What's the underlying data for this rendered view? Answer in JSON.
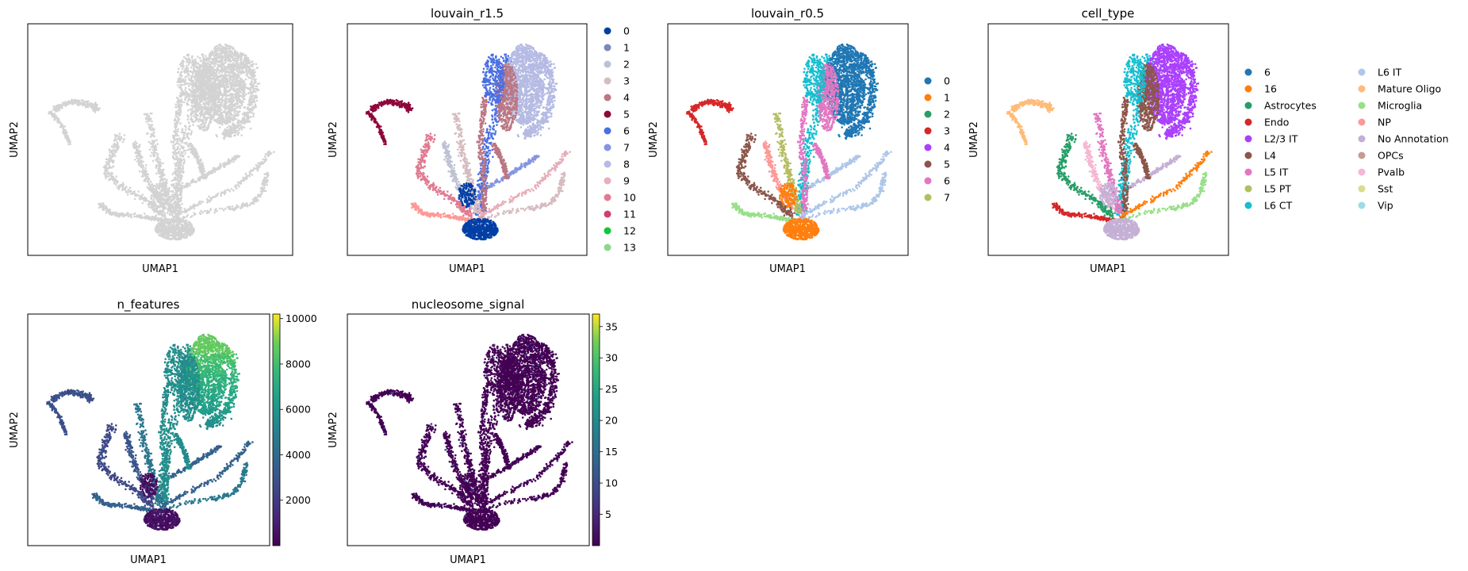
{
  "chart_data": [
    {
      "type": "scatter",
      "title": "",
      "xlabel": "UMAP1",
      "ylabel": "UMAP2",
      "point_color": "#d3d3d3",
      "legend": []
    },
    {
      "type": "scatter",
      "title": "louvain_r1.5",
      "xlabel": "UMAP1",
      "ylabel": "UMAP2",
      "legend_placement": "right",
      "legend": [
        {
          "label": "0",
          "color": "#023fa5"
        },
        {
          "label": "1",
          "color": "#7d87b9"
        },
        {
          "label": "2",
          "color": "#bec1d4"
        },
        {
          "label": "3",
          "color": "#d6bcc0"
        },
        {
          "label": "4",
          "color": "#bb7784"
        },
        {
          "label": "5",
          "color": "#8e063b"
        },
        {
          "label": "6",
          "color": "#4a6fe3"
        },
        {
          "label": "7",
          "color": "#8595e1"
        },
        {
          "label": "8",
          "color": "#b5bbe3"
        },
        {
          "label": "9",
          "color": "#e6afb9"
        },
        {
          "label": "10",
          "color": "#e07b91"
        },
        {
          "label": "11",
          "color": "#d33f6a"
        },
        {
          "label": "12",
          "color": "#11c638"
        },
        {
          "label": "13",
          "color": "#8dd593"
        }
      ]
    },
    {
      "type": "scatter",
      "title": "louvain_r0.5",
      "xlabel": "UMAP1",
      "ylabel": "UMAP2",
      "legend_placement": "right",
      "legend": [
        {
          "label": "0",
          "color": "#1f77b4"
        },
        {
          "label": "1",
          "color": "#ff7f0e"
        },
        {
          "label": "2",
          "color": "#279e68"
        },
        {
          "label": "3",
          "color": "#d62728"
        },
        {
          "label": "4",
          "color": "#aa40fc"
        },
        {
          "label": "5",
          "color": "#8c564b"
        },
        {
          "label": "6",
          "color": "#e377c2"
        },
        {
          "label": "7",
          "color": "#b5bd61"
        }
      ]
    },
    {
      "type": "scatter",
      "title": "cell_type",
      "xlabel": "UMAP1",
      "ylabel": "UMAP2",
      "legend_placement": "right",
      "legend": [
        {
          "label": "6",
          "color": "#1f77b4"
        },
        {
          "label": "16",
          "color": "#ff7f0e"
        },
        {
          "label": "Astrocytes",
          "color": "#279e68"
        },
        {
          "label": "Endo",
          "color": "#d62728"
        },
        {
          "label": "L2/3 IT",
          "color": "#aa40fc"
        },
        {
          "label": "L4",
          "color": "#8c564b"
        },
        {
          "label": "L5 IT",
          "color": "#e377c2"
        },
        {
          "label": "L5 PT",
          "color": "#b5bd61"
        },
        {
          "label": "L6 CT",
          "color": "#17becf"
        },
        {
          "label": "L6 IT",
          "color": "#aec7e8"
        },
        {
          "label": "Mature Oligo",
          "color": "#ffbb78"
        },
        {
          "label": "Microglia",
          "color": "#98df8a"
        },
        {
          "label": "NP",
          "color": "#ff9896"
        },
        {
          "label": "No Annotation",
          "color": "#c5b0d5"
        },
        {
          "label": "OPCs",
          "color": "#c49c94"
        },
        {
          "label": "Pvalb",
          "color": "#f7b6d2"
        },
        {
          "label": "Sst",
          "color": "#dbdb8d"
        },
        {
          "label": "Vip",
          "color": "#9edae5"
        }
      ]
    },
    {
      "type": "scatter",
      "title": "n_features",
      "xlabel": "UMAP1",
      "ylabel": "UMAP2",
      "colormap": "viridis",
      "colorbar_range": [
        0,
        10200
      ],
      "colorbar_ticks": [
        2000,
        4000,
        6000,
        8000,
        10000
      ]
    },
    {
      "type": "scatter",
      "title": "nucleosome_signal",
      "xlabel": "UMAP1",
      "ylabel": "UMAP2",
      "colormap": "viridis",
      "colorbar_range": [
        0,
        37
      ],
      "colorbar_ticks": [
        5,
        10,
        15,
        20,
        25,
        30,
        35
      ]
    }
  ]
}
